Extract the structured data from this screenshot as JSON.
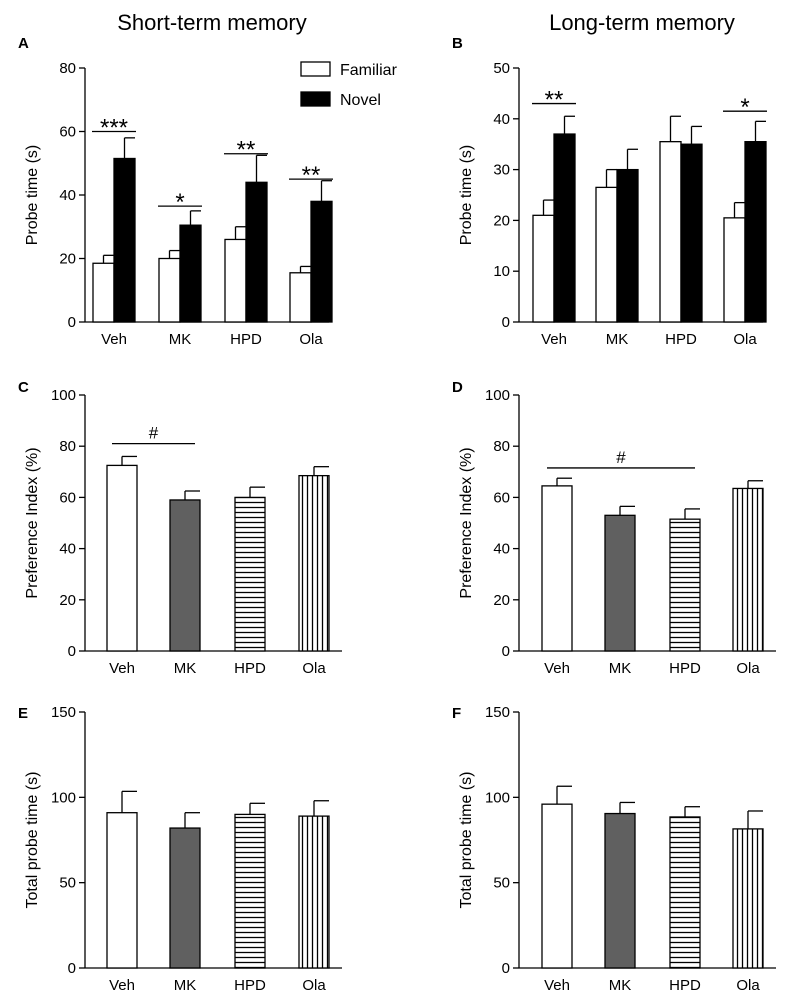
{
  "colors": {
    "white": "#ffffff",
    "black": "#000000",
    "gray": "#606060"
  },
  "titles": {
    "left": "Short-term memory",
    "right": "Long-term memory"
  },
  "legend": {
    "familiar": "Familiar",
    "novel": "Novel"
  },
  "chart_data": [
    {
      "panel": "A",
      "type": "bar",
      "ylabel": "Probe time (s)",
      "ylim": [
        0,
        80
      ],
      "yticks": [
        0,
        20,
        40,
        60,
        80
      ],
      "categories": [
        "Veh",
        "MK",
        "HPD",
        "Ola"
      ],
      "series": [
        {
          "name": "Familiar",
          "fill": "white",
          "values": [
            18.5,
            20,
            26,
            15.5
          ],
          "errors": [
            2.5,
            2.5,
            4,
            2
          ]
        },
        {
          "name": "Novel",
          "fill": "black",
          "values": [
            51.5,
            30.5,
            44,
            38
          ],
          "errors": [
            6.5,
            4.5,
            8.5,
            6.5
          ]
        }
      ],
      "significance": [
        {
          "category": 0,
          "label": "***",
          "y": 60
        },
        {
          "category": 1,
          "label": "*",
          "y": 36.5
        },
        {
          "category": 2,
          "label": "**",
          "y": 53
        },
        {
          "category": 3,
          "label": "**",
          "y": 45
        }
      ]
    },
    {
      "panel": "B",
      "type": "bar",
      "ylabel": "Probe time (s)",
      "ylim": [
        0,
        50
      ],
      "yticks": [
        0,
        10,
        20,
        30,
        40,
        50
      ],
      "categories": [
        "Veh",
        "MK",
        "HPD",
        "Ola"
      ],
      "series": [
        {
          "name": "Familiar",
          "fill": "white",
          "values": [
            21,
            26.5,
            35.5,
            20.5
          ],
          "errors": [
            3,
            3.5,
            5,
            3
          ]
        },
        {
          "name": "Novel",
          "fill": "black",
          "values": [
            37,
            30,
            35,
            35.5
          ],
          "errors": [
            3.5,
            4,
            3.5,
            4
          ]
        }
      ],
      "significance": [
        {
          "category": 0,
          "label": "**",
          "y": 43
        },
        {
          "category": 3,
          "label": "*",
          "y": 41.5
        }
      ]
    },
    {
      "panel": "C",
      "type": "bar",
      "ylabel": "Preference Index (%)",
      "ylim": [
        0,
        100
      ],
      "yticks": [
        0,
        20,
        40,
        60,
        80,
        100
      ],
      "categories": [
        "Veh",
        "MK",
        "HPD",
        "Ola"
      ],
      "fills": [
        "white",
        "gray",
        "hstripe",
        "vstripe"
      ],
      "values": [
        72.5,
        59,
        60,
        68.5
      ],
      "errors": [
        3.5,
        3.5,
        4,
        3.5
      ],
      "comparison": {
        "from": 0,
        "to": 1,
        "label": "#",
        "y": 81
      }
    },
    {
      "panel": "D",
      "type": "bar",
      "ylabel": "Preference Index (%)",
      "ylim": [
        0,
        100
      ],
      "yticks": [
        0,
        20,
        40,
        60,
        80,
        100
      ],
      "categories": [
        "Veh",
        "MK",
        "HPD",
        "Ola"
      ],
      "fills": [
        "white",
        "gray",
        "hstripe",
        "vstripe"
      ],
      "values": [
        64.5,
        53,
        51.5,
        63.5
      ],
      "errors": [
        3,
        3.5,
        4,
        3
      ],
      "comparison": {
        "from": 0,
        "to": 2,
        "label": "#",
        "y": 71.5
      }
    },
    {
      "panel": "E",
      "type": "bar",
      "ylabel": "Total probe time (s)",
      "ylim": [
        0,
        150
      ],
      "yticks": [
        0,
        50,
        100,
        150
      ],
      "categories": [
        "Veh",
        "MK",
        "HPD",
        "Ola"
      ],
      "fills": [
        "white",
        "gray",
        "hstripe",
        "vstripe"
      ],
      "values": [
        91,
        82,
        90,
        89
      ],
      "errors": [
        12.5,
        9,
        6.5,
        9
      ]
    },
    {
      "panel": "F",
      "type": "bar",
      "ylabel": "Total probe time (s)",
      "ylim": [
        0,
        150
      ],
      "yticks": [
        0,
        50,
        100,
        150
      ],
      "categories": [
        "Veh",
        "MK",
        "HPD",
        "Ola"
      ],
      "fills": [
        "white",
        "gray",
        "hstripe",
        "vstripe"
      ],
      "values": [
        96,
        90.5,
        88.5,
        81.5
      ],
      "errors": [
        10.5,
        6.5,
        6,
        10.5
      ]
    }
  ]
}
